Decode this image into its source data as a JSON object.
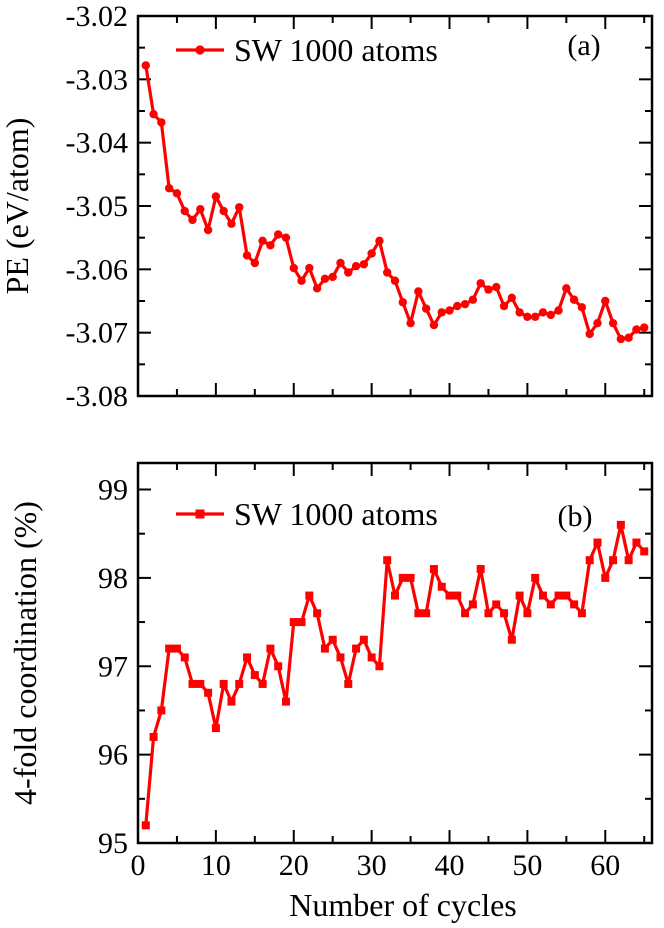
{
  "chart_data": [
    {
      "panel_label": "(a)",
      "type": "line",
      "ylabel": "PE (eV/atom)",
      "xlabel": "",
      "xlim": [
        0,
        66
      ],
      "ylim": [
        -3.08,
        -3.02
      ],
      "xticks": [
        0,
        10,
        20,
        30,
        40,
        50,
        60
      ],
      "yticks": [
        -3.08,
        -3.07,
        -3.06,
        -3.05,
        -3.04,
        -3.03,
        -3.02
      ],
      "ytick_labels": [
        "-3.08",
        "-3.07",
        "-3.06",
        "-3.05",
        "-3.04",
        "-3.03",
        "-3.02"
      ],
      "xtick_labels": [
        "",
        "",
        "",
        "",
        "",
        "",
        ""
      ],
      "legend": "top-left",
      "marker": "circle",
      "color": "#ff0000",
      "series": [
        {
          "name": "SW 1000 atoms",
          "x": [
            1,
            2,
            3,
            4,
            5,
            6,
            7,
            8,
            9,
            10,
            11,
            12,
            13,
            14,
            15,
            16,
            17,
            18,
            19,
            20,
            21,
            22,
            23,
            24,
            25,
            26,
            27,
            28,
            29,
            30,
            31,
            32,
            33,
            34,
            35,
            36,
            37,
            38,
            39,
            40,
            41,
            42,
            43,
            44,
            45,
            46,
            47,
            48,
            49,
            50,
            51,
            52,
            53,
            54,
            55,
            56,
            57,
            58,
            59,
            60,
            61,
            62,
            63,
            64,
            65
          ],
          "y": [
            -3.0278,
            -3.0355,
            -3.0368,
            -3.0472,
            -3.048,
            -3.0508,
            -3.0522,
            -3.0505,
            -3.0538,
            -3.0485,
            -3.0508,
            -3.0528,
            -3.0502,
            -3.0578,
            -3.059,
            -3.0555,
            -3.0562,
            -3.0545,
            -3.055,
            -3.0598,
            -3.0618,
            -3.0598,
            -3.063,
            -3.0615,
            -3.0612,
            -3.059,
            -3.0605,
            -3.0595,
            -3.0592,
            -3.0575,
            -3.0555,
            -3.0605,
            -3.0618,
            -3.0652,
            -3.0685,
            -3.0635,
            -3.0662,
            -3.0688,
            -3.0668,
            -3.0665,
            -3.0658,
            -3.0655,
            -3.0648,
            -3.0622,
            -3.0632,
            -3.0628,
            -3.0658,
            -3.0645,
            -3.0668,
            -3.0675,
            -3.0675,
            -3.0668,
            -3.0672,
            -3.0665,
            -3.063,
            -3.0648,
            -3.066,
            -3.0702,
            -3.0685,
            -3.065,
            -3.0685,
            -3.071,
            -3.0708,
            -3.0695,
            -3.0692
          ]
        }
      ]
    },
    {
      "panel_label": "(b)",
      "type": "line",
      "ylabel": "4-fold coordination (%)",
      "xlabel": "Number of cycles",
      "xlim": [
        0,
        66
      ],
      "ylim": [
        95,
        99.3
      ],
      "xticks": [
        0,
        10,
        20,
        30,
        40,
        50,
        60
      ],
      "yticks": [
        95,
        96,
        97,
        98,
        99
      ],
      "ytick_labels": [
        "95",
        "96",
        "97",
        "98",
        "99"
      ],
      "xtick_labels": [
        "0",
        "10",
        "20",
        "30",
        "40",
        "50",
        "60"
      ],
      "legend": "top-left",
      "marker": "square",
      "color": "#ff0000",
      "series": [
        {
          "name": "SW 1000 atoms",
          "x": [
            1,
            2,
            3,
            4,
            5,
            6,
            7,
            8,
            9,
            10,
            11,
            12,
            13,
            14,
            15,
            16,
            17,
            18,
            19,
            20,
            21,
            22,
            23,
            24,
            25,
            26,
            27,
            28,
            29,
            30,
            31,
            32,
            33,
            34,
            35,
            36,
            37,
            38,
            39,
            40,
            41,
            42,
            43,
            44,
            45,
            46,
            47,
            48,
            49,
            50,
            51,
            52,
            53,
            54,
            55,
            56,
            57,
            58,
            59,
            60,
            61,
            62,
            63,
            64,
            65
          ],
          "y": [
            95.2,
            96.2,
            96.5,
            97.2,
            97.2,
            97.1,
            96.8,
            96.8,
            96.7,
            96.3,
            96.8,
            96.6,
            96.8,
            97.1,
            96.9,
            96.8,
            97.2,
            97.0,
            96.6,
            97.5,
            97.5,
            97.8,
            97.6,
            97.2,
            97.3,
            97.1,
            96.8,
            97.2,
            97.3,
            97.1,
            97.0,
            98.2,
            97.8,
            98.0,
            98.0,
            97.6,
            97.6,
            98.1,
            97.9,
            97.8,
            97.8,
            97.6,
            97.7,
            98.1,
            97.6,
            97.7,
            97.6,
            97.3,
            97.8,
            97.6,
            98.0,
            97.8,
            97.7,
            97.8,
            97.8,
            97.7,
            97.6,
            98.2,
            98.4,
            98.0,
            98.2,
            98.6,
            98.2,
            98.4,
            98.3
          ]
        }
      ]
    }
  ]
}
